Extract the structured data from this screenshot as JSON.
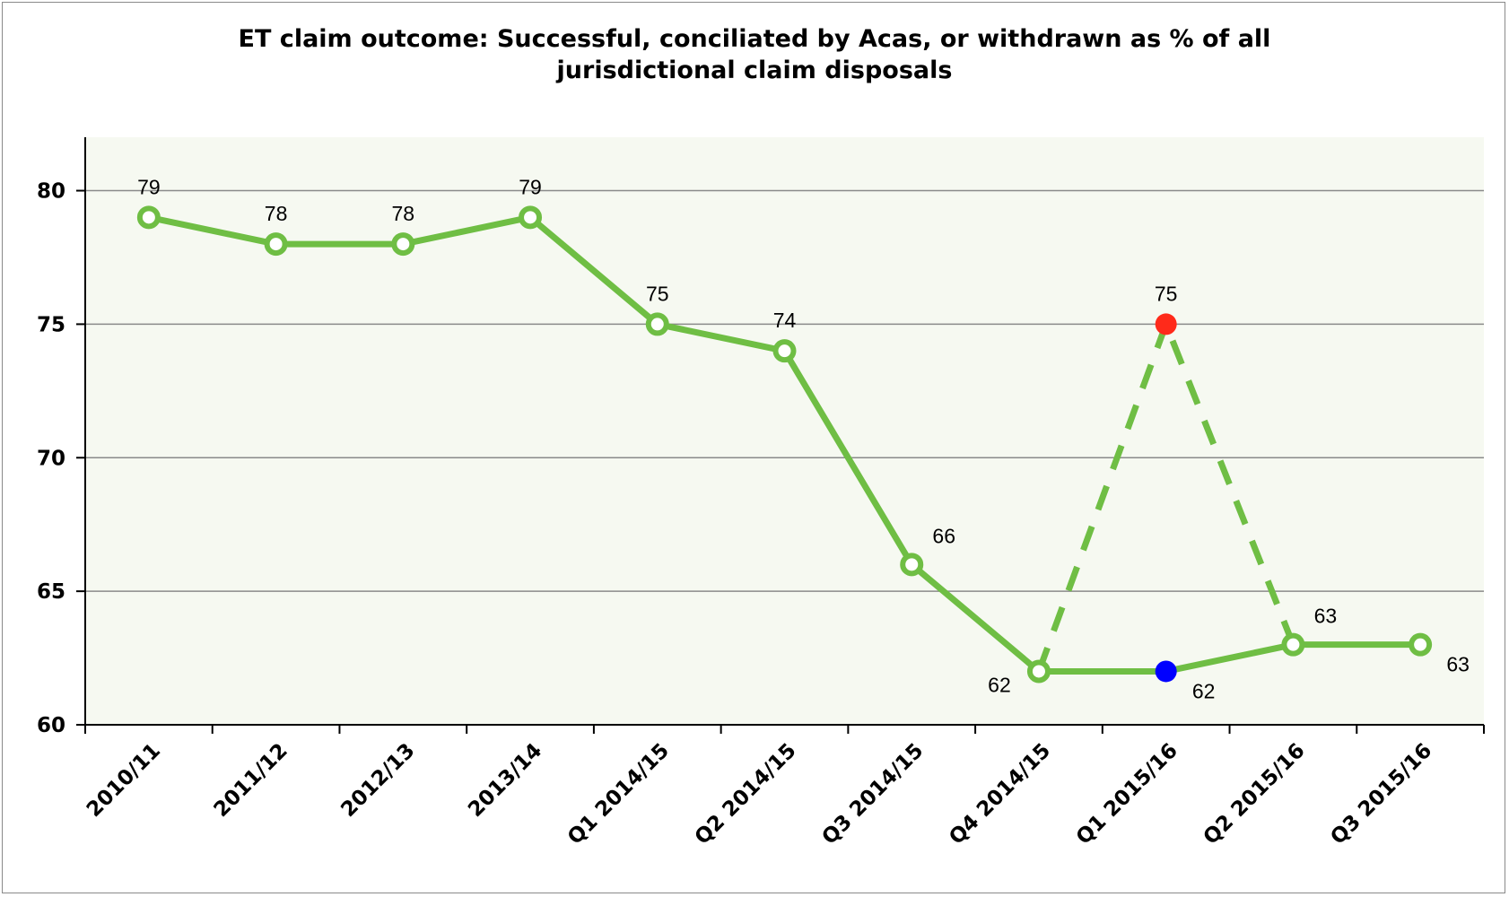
{
  "chart_data": {
    "type": "line",
    "title_lines": [
      "ET claim outcome: Successful, conciliated by Acas, or withdrawn as % of all",
      "jurisdictional claim disposals"
    ],
    "xlabel": "",
    "ylabel": "",
    "ylim": [
      60,
      82
    ],
    "yticks": [
      60,
      65,
      70,
      75,
      80
    ],
    "grid": true,
    "legend": "none",
    "categories": [
      "2010/11",
      "2011/12",
      "2012/13",
      "2013/14",
      "Q1 2014/15",
      "Q2 2014/15",
      "Q3 2014/15",
      "Q4 2014/15",
      "Q1 2015/16",
      "Q2 2015/16",
      "Q3 2015/16"
    ],
    "series": [
      {
        "style": "solid",
        "values": [
          79,
          78,
          78,
          79,
          75,
          74,
          66,
          62,
          62,
          63,
          63
        ],
        "label_position": [
          "above",
          "above",
          "above",
          "above",
          "above",
          "above",
          "above-right",
          "below-left",
          "below-right",
          "above-right",
          "below-right"
        ],
        "highlight": {
          "index": 8,
          "color": "#0000ff"
        }
      },
      {
        "style": "dashed",
        "values": [
          null,
          null,
          null,
          null,
          null,
          null,
          null,
          62,
          75,
          63,
          null
        ],
        "labelled_points": [
          8
        ],
        "label_position": [
          null,
          null,
          null,
          null,
          null,
          null,
          null,
          null,
          "above",
          null,
          null
        ],
        "highlight": {
          "index": 8,
          "color": "#ff2a1a"
        }
      }
    ],
    "colors": {
      "line": "#6fbe44",
      "plot_background": "#f6f9f1",
      "grid": "#8a8a8a",
      "marker_fill": "#ffffff"
    }
  }
}
